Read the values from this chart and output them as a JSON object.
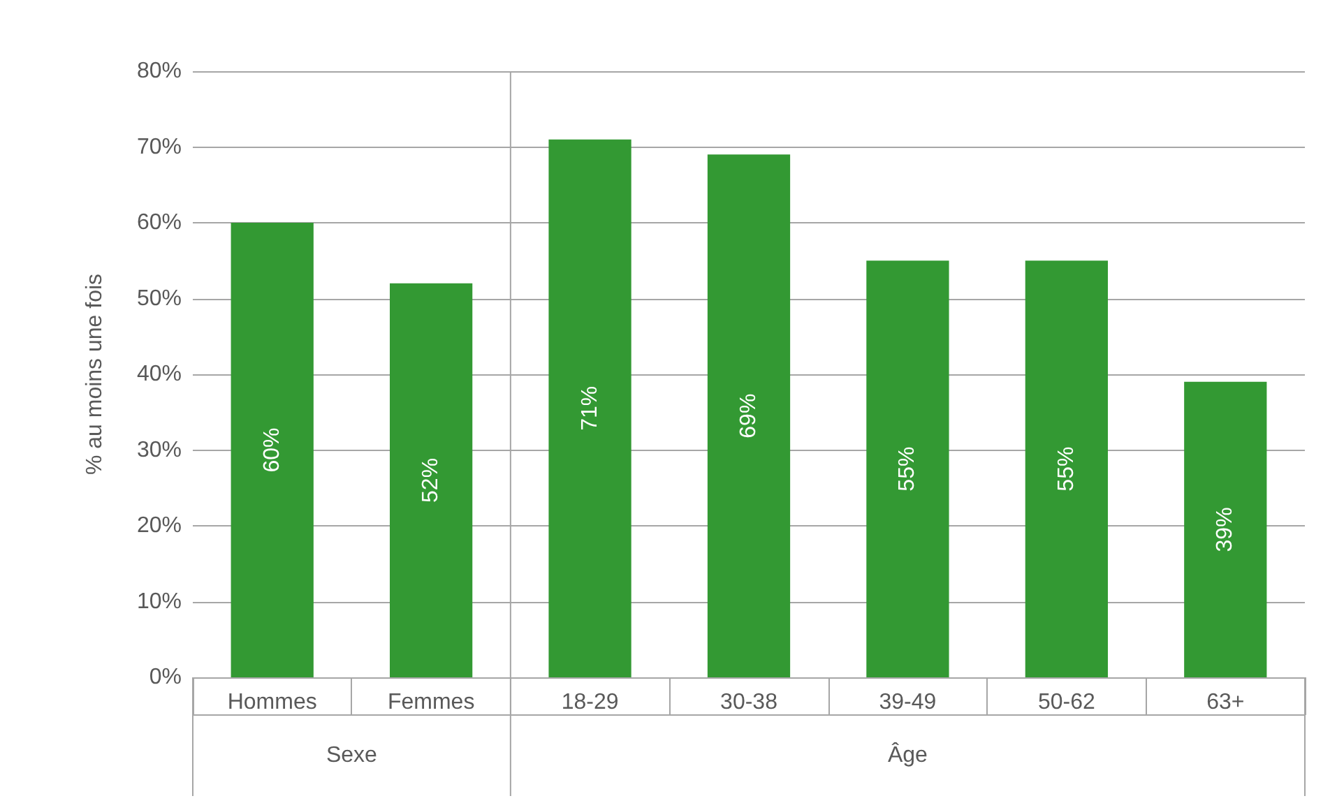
{
  "chart_data": {
    "type": "bar",
    "ylabel": "% au moins une fois",
    "categories": [
      "Hommes",
      "Femmes",
      "18-29",
      "30-38",
      "39-49",
      "50-62",
      "63+"
    ],
    "values": [
      60,
      52,
      71,
      69,
      55,
      55,
      39
    ],
    "value_labels": [
      "60%",
      "52%",
      "71%",
      "69%",
      "55%",
      "55%",
      "39%"
    ],
    "color": "#339933",
    "ylim": [
      0,
      80
    ],
    "yticks": [
      {
        "value": 0,
        "label": "0%"
      },
      {
        "value": 10,
        "label": "10%"
      },
      {
        "value": 20,
        "label": "20%"
      },
      {
        "value": 30,
        "label": "30%"
      },
      {
        "value": 40,
        "label": "40%"
      },
      {
        "value": 50,
        "label": "50%"
      },
      {
        "value": 60,
        "label": "60%"
      },
      {
        "value": 70,
        "label": "70%"
      },
      {
        "value": 80,
        "label": "80%"
      }
    ],
    "grid": "y",
    "annotations": [
      "Sexe",
      "Âge"
    ]
  }
}
